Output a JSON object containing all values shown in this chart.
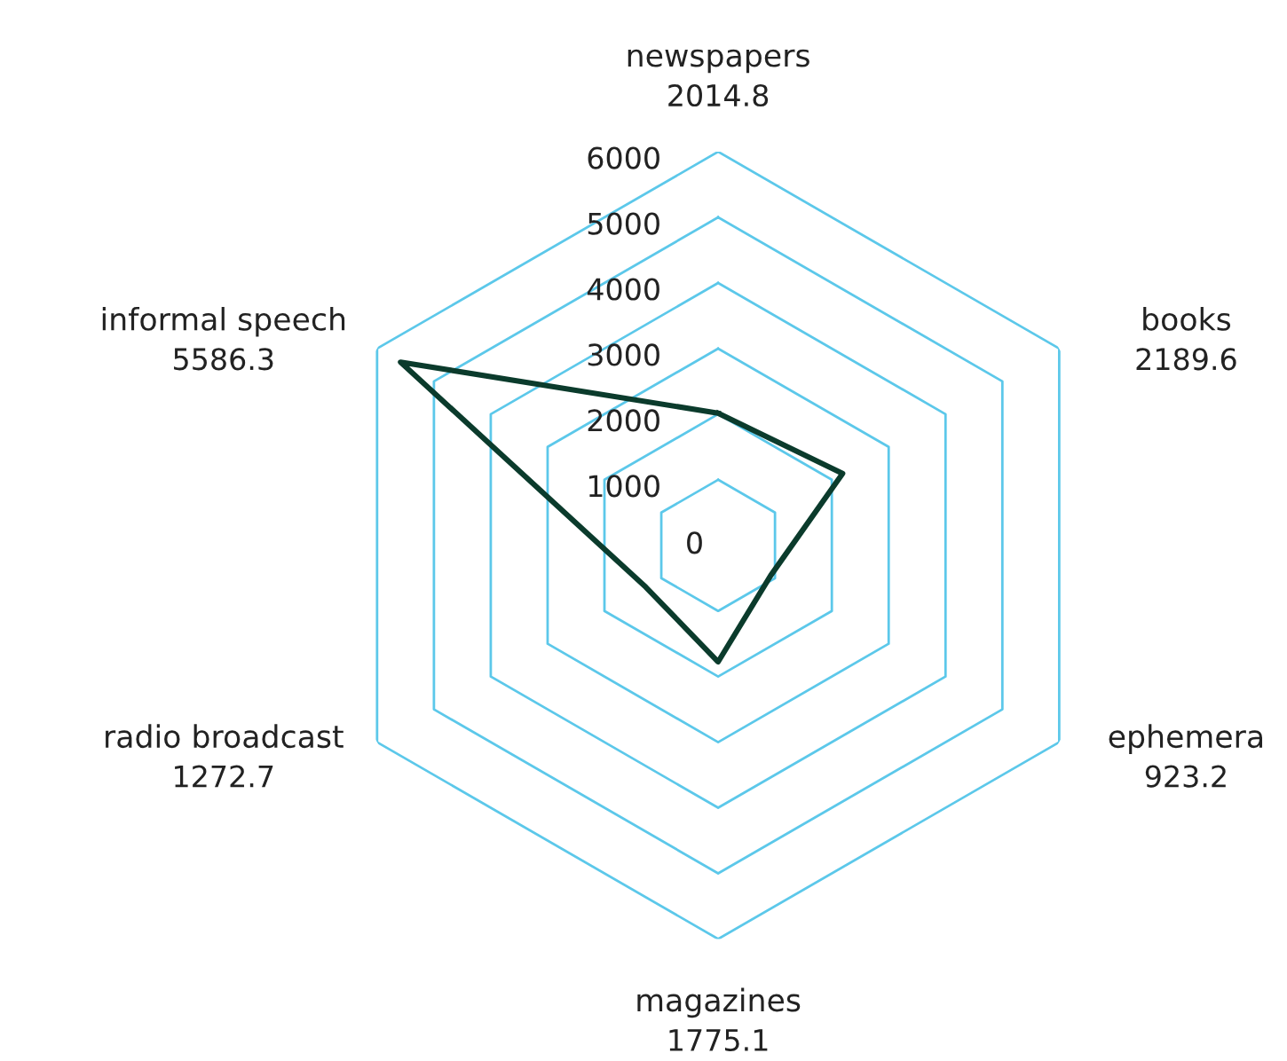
{
  "chart_data": {
    "type": "radar",
    "categories": [
      "newspapers",
      "books",
      "ephemera",
      "magazines",
      "radio broadcast",
      "informal speech"
    ],
    "series": [
      {
        "color": "#0b3b2c",
        "values": [
          2014.8,
          2189.6,
          923.2,
          1775.1,
          1272.7,
          5586.3
        ]
      }
    ],
    "annotations": [
      "2014.8",
      "2189.6",
      "923.2",
      "1775.1",
      "1272.7",
      "5586.3"
    ],
    "ylim": [
      0,
      6000
    ],
    "yticks": [
      0,
      1000,
      2000,
      3000,
      4000,
      5000,
      6000
    ],
    "grid": true,
    "legend": false
  }
}
